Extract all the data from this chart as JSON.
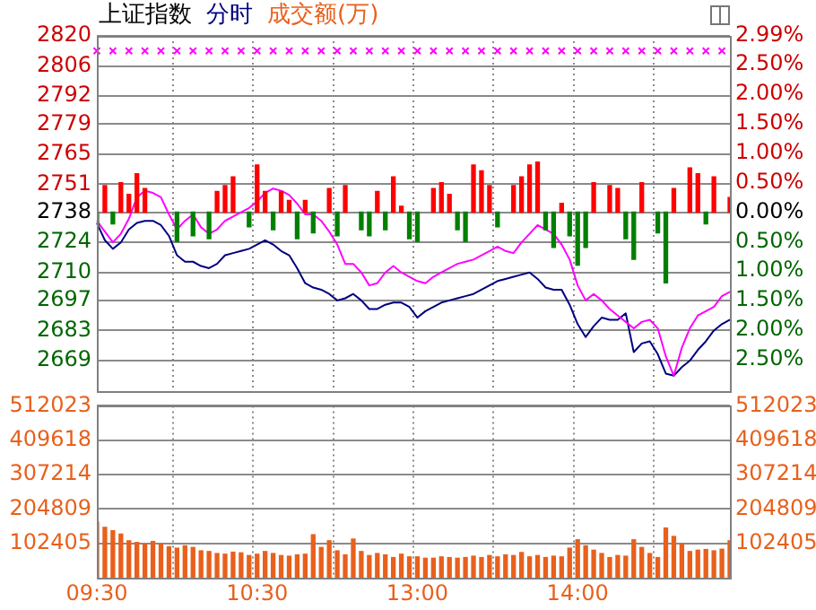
{
  "chart_data": [
    {
      "type": "line",
      "title": "上证指数",
      "legend": "top left",
      "grid": true,
      "marker": "none",
      "categories": [
        null,
        null,
        null,
        null,
        null,
        null,
        null,
        null,
        null,
        null,
        null,
        null,
        null,
        null,
        null,
        null,
        null,
        null,
        null,
        null,
        null,
        null,
        null,
        null,
        null,
        null,
        null,
        null,
        null,
        null,
        null,
        null,
        null,
        null,
        null,
        null,
        null,
        null,
        null,
        null,
        null,
        null,
        null,
        null,
        null,
        null,
        null,
        null,
        null,
        null,
        null,
        null,
        null,
        null,
        null,
        null,
        null,
        null,
        null,
        null,
        null,
        null,
        null,
        null,
        null,
        null,
        null,
        null,
        null,
        null,
        null,
        null,
        null,
        null,
        null,
        null,
        null,
        null,
        null,
        null
      ],
      "ylim": [
        2655,
        2820
      ],
      "yticks": [
        2669,
        2683,
        2697,
        2710,
        2724,
        2738,
        2751,
        2765,
        2779,
        2792,
        2806,
        2820
      ],
      "y2lim": [
        -3.03,
        2.99
      ],
      "y2ticks": [
        {
          "value": -2.5,
          "label": "2.50%"
        },
        {
          "value": -2,
          "label": "2.00%"
        },
        {
          "value": -1.5,
          "label": "1.50%"
        },
        {
          "value": -1,
          "label": "1.00%"
        },
        {
          "value": -0.5,
          "label": "0.50%"
        },
        {
          "value": 0,
          "label": "0.00%"
        },
        {
          "value": 0.5,
          "label": "0.50%"
        },
        {
          "value": 1,
          "label": "1.00%"
        },
        {
          "value": 1.5,
          "label": "1.50%"
        },
        {
          "value": 2,
          "label": "2.00%"
        },
        {
          "value": 2.5,
          "label": "2.50%"
        },
        {
          "value": 2.99,
          "label": "2.99%"
        }
      ],
      "series": [
        {
          "type": "bar",
          "axis": "y2",
          "color": "#ff0000",
          "values": [
            null,
            0.45,
            null,
            0.5,
            0.3,
            0.65,
            0.4,
            null,
            null,
            null,
            null,
            null,
            null,
            null,
            null,
            0.35,
            0.45,
            0.6,
            null,
            null,
            0.8,
            0.35,
            null,
            0.35,
            0.2,
            null,
            0.2,
            null,
            null,
            0.4,
            null,
            0.45,
            null,
            null,
            null,
            0.35,
            null,
            0.6,
            0.1,
            null,
            null,
            null,
            0.4,
            0.5,
            0.3,
            null,
            null,
            0.8,
            0.7,
            0.45,
            null,
            null,
            0.45,
            0.6,
            0.8,
            0.85,
            null,
            null,
            0.15,
            null,
            null,
            null,
            0.5,
            null,
            0.45,
            0.4,
            null,
            null,
            0.5,
            null,
            null,
            null,
            0.4,
            null,
            0.75,
            0.65,
            null,
            0.6,
            null,
            0.25
          ]
        },
        {
          "type": "bar",
          "axis": "y2",
          "color": "#008000",
          "values": [
            -0.25,
            null,
            -0.2,
            null,
            null,
            null,
            null,
            null,
            null,
            null,
            -0.5,
            null,
            -0.4,
            null,
            -0.45,
            null,
            null,
            null,
            null,
            -0.25,
            null,
            null,
            -0.3,
            null,
            null,
            -0.45,
            null,
            -0.35,
            null,
            null,
            -0.4,
            null,
            null,
            -0.3,
            -0.4,
            null,
            -0.3,
            null,
            null,
            -0.45,
            -0.5,
            null,
            null,
            null,
            null,
            -0.3,
            -0.5,
            null,
            null,
            null,
            -0.25,
            null,
            null,
            null,
            null,
            null,
            -0.3,
            -0.6,
            null,
            -0.4,
            -0.9,
            -0.6,
            null,
            null,
            null,
            null,
            -0.45,
            -0.8,
            null,
            null,
            -0.35,
            -1.2,
            null,
            null,
            null,
            null,
            -0.2,
            null,
            null,
            null
          ]
        },
        {
          "color": "#ff00ff",
          "values": [
            2734,
            2729,
            2724,
            2728,
            2735,
            2745,
            2748,
            2747,
            2745,
            2737,
            2730,
            2734,
            2737,
            2731,
            2728,
            2730,
            2734,
            2736,
            2738,
            2740,
            2743,
            2747,
            2749,
            2748,
            2746,
            2742,
            2737,
            2737,
            2734,
            2729,
            2723,
            2714,
            2714,
            2710,
            2704,
            2705,
            2710,
            2713,
            2710,
            2708,
            2706,
            2705,
            2708,
            2710,
            2712,
            2714,
            2715,
            2716,
            2718,
            2720,
            2722,
            2720,
            2719,
            2724,
            2728,
            2732,
            2730,
            2728,
            2723,
            2716,
            2704,
            2697,
            2700,
            2697,
            2693,
            2690,
            2687,
            2684,
            2687,
            2688,
            2684,
            2671,
            2662,
            2675,
            2684,
            2690,
            2692,
            2694,
            2699,
            2701
          ]
        },
        {
          "name": "分时",
          "color": "#000080",
          "values": [
            2733,
            2725,
            2721,
            2724,
            2730,
            2733,
            2734,
            2734,
            2732,
            2727,
            2718,
            2715,
            2715,
            2713,
            2712,
            2714,
            2718,
            2719,
            2720,
            2721,
            2723,
            2725,
            2723,
            2720,
            2718,
            2712,
            2705,
            2703,
            2702,
            2700,
            2697,
            2698,
            2700,
            2697,
            2693,
            2693,
            2695,
            2696,
            2696,
            2694,
            2689,
            2692,
            2694,
            2696,
            2697,
            2698,
            2699,
            2700,
            2702,
            2704,
            2706,
            2707,
            2708,
            2709,
            2710,
            2707,
            2703,
            2702,
            2702,
            2695,
            2686,
            2680,
            2685,
            2689,
            2688,
            2688,
            2691,
            2673,
            2677,
            2678,
            2672,
            2663,
            2662,
            2666,
            2669,
            2674,
            2678,
            2683,
            2686,
            2688
          ]
        },
        {
          "type": "scatter",
          "marker": "cross",
          "color": "#ff00ff",
          "values": [
            2813,
            null,
            2813,
            null,
            2813,
            null,
            2813,
            null,
            2813,
            null,
            2813,
            null,
            2813,
            null,
            2813,
            null,
            2813,
            null,
            2813,
            null,
            2813,
            null,
            2813,
            null,
            2813,
            null,
            2813,
            null,
            2813,
            null,
            2813,
            null,
            2813,
            null,
            2813,
            null,
            2813,
            null,
            2813,
            null,
            2813,
            null,
            2813,
            null,
            2813,
            null,
            2813,
            null,
            2813,
            null,
            2813,
            null,
            2813,
            null,
            2813,
            null,
            2813,
            null,
            2813,
            null,
            2813,
            null,
            2813,
            null,
            2813,
            null,
            2813,
            null,
            2813,
            null,
            2813,
            null,
            2813,
            null,
            2813,
            null,
            2813,
            null,
            2813,
            null
          ]
        }
      ]
    },
    {
      "type": "bar",
      "legend": "top left",
      "grid": true,
      "categories": [
        "09:30",
        null,
        null,
        null,
        null,
        null,
        null,
        null,
        null,
        null,
        null,
        null,
        null,
        null,
        null,
        null,
        null,
        null,
        null,
        null,
        "10:30",
        null,
        null,
        null,
        null,
        null,
        null,
        null,
        null,
        null,
        null,
        null,
        null,
        null,
        null,
        null,
        null,
        null,
        null,
        null,
        "13:00",
        null,
        null,
        null,
        null,
        null,
        null,
        null,
        null,
        null,
        null,
        null,
        null,
        null,
        null,
        null,
        null,
        null,
        null,
        null,
        "14:00",
        null,
        null,
        null,
        null,
        null,
        null,
        null,
        null,
        null,
        null,
        null,
        null,
        null,
        null,
        null,
        null,
        null,
        null,
        null
      ],
      "ylim": [
        0,
        512023
      ],
      "yticks": [
        102405,
        204809,
        307214,
        409618,
        512023
      ],
      "y2lim": [
        0,
        512023
      ],
      "y2ticks": [
        102405,
        204809,
        307214,
        409618,
        512023
      ],
      "series": [
        {
          "name": "成交额(万)",
          "color": "#e8601c",
          "values": [
            165000,
            150000,
            140000,
            130000,
            110000,
            105000,
            100000,
            108000,
            100000,
            92000,
            88000,
            95000,
            90000,
            80000,
            78000,
            72000,
            70000,
            76000,
            74000,
            66000,
            70000,
            78000,
            72000,
            66000,
            64000,
            68000,
            70000,
            128000,
            90000,
            110000,
            80000,
            68000,
            115000,
            78000,
            66000,
            72000,
            68000,
            60000,
            70000,
            62000,
            62000,
            58000,
            58000,
            62000,
            60000,
            58000,
            60000,
            64000,
            60000,
            66000,
            62000,
            68000,
            66000,
            75000,
            62000,
            66000,
            60000,
            64000,
            62000,
            88000,
            113000,
            95000,
            82000,
            72000,
            60000,
            66000,
            64000,
            113000,
            90000,
            72000,
            60000,
            148000,
            123000,
            100000,
            78000,
            82000,
            84000,
            80000,
            85000,
            110000
          ]
        }
      ]
    }
  ]
}
